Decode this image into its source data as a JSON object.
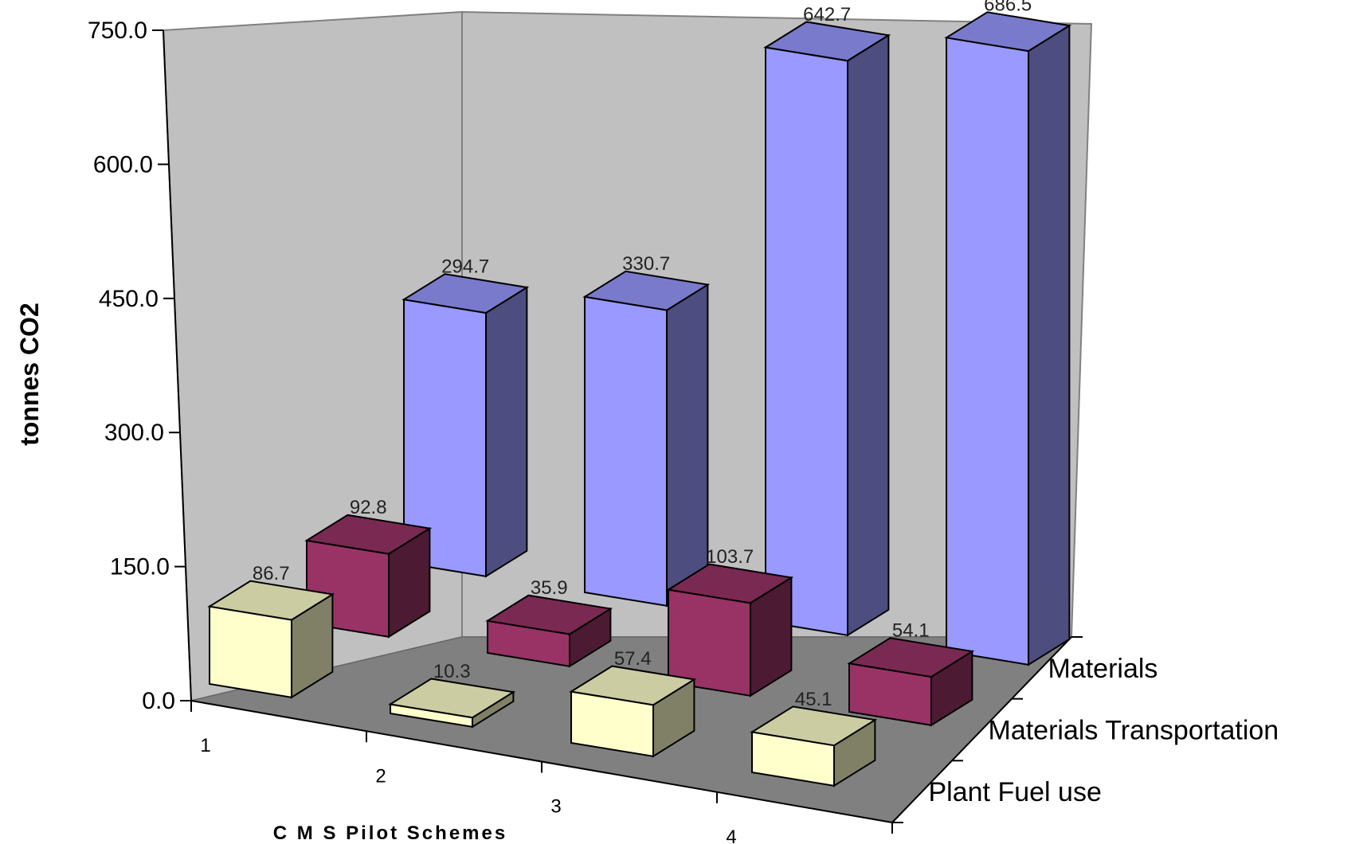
{
  "chart_data": {
    "type": "bar",
    "title": "",
    "xlabel": "C M S  Pilot  Schemes",
    "ylabel": "tonnes CO2",
    "ylim": [
      0,
      750
    ],
    "yticks": [
      "0.0",
      "150.0",
      "300.0",
      "450.0",
      "600.0",
      "750.0"
    ],
    "categories": [
      "1",
      "2",
      "3",
      "4"
    ],
    "series": [
      {
        "name": "Plant Fuel use",
        "values": [
          86.7,
          10.3,
          57.4,
          45.1
        ],
        "labels": [
          "86.7",
          "10.3",
          "57.4",
          "45.1"
        ],
        "color": "#ffffcc"
      },
      {
        "name": "Materials Transportation",
        "values": [
          92.8,
          35.9,
          103.7,
          54.1
        ],
        "labels": [
          "92.8",
          "35.9",
          "103.7",
          "54.1"
        ],
        "color": "#993366"
      },
      {
        "name": "Materials",
        "values": [
          294.7,
          330.7,
          642.7,
          686.5
        ],
        "labels": [
          "294.7",
          "330.7",
          "642.7",
          "686.5"
        ],
        "color": "#9999ff"
      }
    ],
    "grid": false,
    "legend": "none",
    "style": "3d-column"
  }
}
